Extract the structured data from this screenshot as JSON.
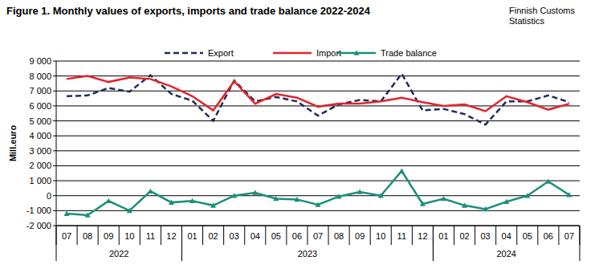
{
  "chart_data": {
    "type": "line",
    "title": "Figure 1. Monthly values of exports, imports and trade balance 2022-2024",
    "source": [
      "Finnish Customs",
      "Statistics"
    ],
    "y_label": "Mill.euro",
    "categories": [
      "07",
      "08",
      "09",
      "10",
      "11",
      "12",
      "01",
      "02",
      "03",
      "04",
      "05",
      "06",
      "07",
      "08",
      "09",
      "10",
      "11",
      "12",
      "01",
      "02",
      "03",
      "04",
      "05",
      "06",
      "07"
    ],
    "category_groups": [
      {
        "label": "2022",
        "count": 6
      },
      {
        "label": "2023",
        "count": 12
      },
      {
        "label": "2024",
        "count": 7
      }
    ],
    "series": [
      {
        "name": "Export",
        "color": "#1f2d5a",
        "line_style": "dashed",
        "values": [
          6650,
          6700,
          7200,
          6950,
          8050,
          6800,
          6350,
          5000,
          7700,
          6300,
          6600,
          6300,
          5350,
          6100,
          6400,
          6300,
          8150,
          5700,
          5800,
          5450,
          4750,
          6300,
          6300,
          6700,
          6250
        ]
      },
      {
        "name": "Import",
        "color": "#e3242b",
        "line_style": "solid",
        "values": [
          7800,
          8000,
          7600,
          7900,
          7800,
          7300,
          6650,
          5700,
          7650,
          6150,
          6800,
          6550,
          5950,
          6150,
          6150,
          6300,
          6550,
          6250,
          6000,
          6100,
          5650,
          6650,
          6250,
          5750,
          6150
        ]
      },
      {
        "name": "Trade balance",
        "color": "#1a8f7a",
        "line_style": "solid",
        "marker": "triangle",
        "values": [
          -1200,
          -1300,
          -350,
          -1000,
          300,
          -450,
          -350,
          -650,
          0,
          200,
          -200,
          -250,
          -600,
          -50,
          250,
          0,
          1650,
          -550,
          -200,
          -650,
          -900,
          -400,
          0,
          950,
          50
        ]
      }
    ],
    "ylim": [
      -2000,
      9000
    ],
    "yticks": [
      {
        "value": -2000,
        "label": "-2 000"
      },
      {
        "value": -1000,
        "label": "-1 000"
      },
      0,
      {
        "value": 1000,
        "label": "1 000"
      },
      {
        "value": 2000,
        "label": "2 000"
      },
      {
        "value": 3000,
        "label": "3 000"
      },
      {
        "value": 4000,
        "label": "4 000"
      },
      {
        "value": 5000,
        "label": "5 000"
      },
      {
        "value": 6000,
        "label": "6 000"
      },
      {
        "value": 7000,
        "label": "7 000"
      },
      {
        "value": 8000,
        "label": "8 000"
      },
      {
        "value": 9000,
        "label": "9 000"
      }
    ],
    "grid": true,
    "legend": "top"
  }
}
